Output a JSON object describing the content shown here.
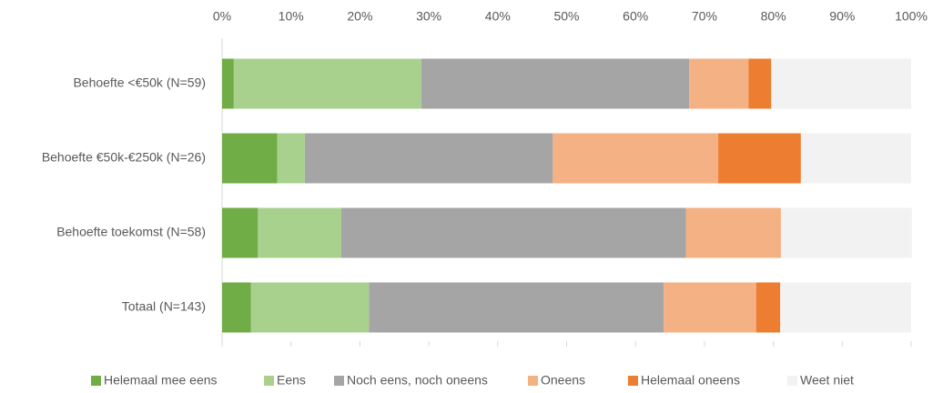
{
  "chart_data": {
    "type": "stacked_bar_horizontal",
    "categories": [
      "Behoefte <€50k (N=59)",
      "Behoefte €50k-€250k (N=26)",
      "Behoefte toekomst (N=58)",
      "Totaal (N=143)"
    ],
    "series": [
      {
        "name": "Helemaal mee eens",
        "color": "#70ad47",
        "values": [
          1.7,
          8,
          5.2,
          4.2
        ]
      },
      {
        "name": "Eens",
        "color": "#a9d18e",
        "values": [
          27.2,
          4,
          12.1,
          17.1
        ]
      },
      {
        "name": "Noch eens, noch oneens",
        "color": "#a5a5a5",
        "values": [
          38.9,
          36,
          50,
          42.8
        ]
      },
      {
        "name": "Oneens",
        "color": "#f4b183",
        "values": [
          8.6,
          24,
          13.8,
          13.4
        ]
      },
      {
        "name": "Helemaal oneens",
        "color": "#ed7d31",
        "values": [
          3.3,
          12,
          0,
          3.5
        ]
      },
      {
        "name": "Weet niet",
        "color": "#f2f2f2",
        "values": [
          20.3,
          16,
          19,
          19
        ]
      }
    ],
    "xlim": [
      0,
      100
    ],
    "xticks": [
      {
        "value": 0,
        "label": "0%"
      },
      {
        "value": 10,
        "label": "10%"
      },
      {
        "value": 20,
        "label": "20%"
      },
      {
        "value": 30,
        "label": "30%"
      },
      {
        "value": 40,
        "label": "40%"
      },
      {
        "value": 50,
        "label": "50%"
      },
      {
        "value": 60,
        "label": "60%"
      },
      {
        "value": 70,
        "label": "70%"
      },
      {
        "value": 80,
        "label": "80%"
      },
      {
        "value": 90,
        "label": "90%"
      },
      {
        "value": 100,
        "label": "100%"
      }
    ],
    "legend": "bottom"
  }
}
